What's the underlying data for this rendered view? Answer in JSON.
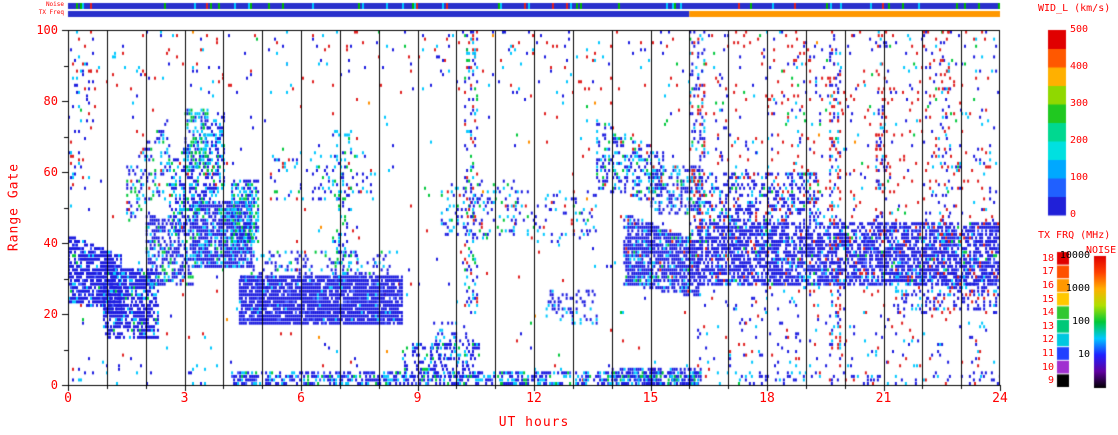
{
  "strips": {
    "noise_label": "Noise",
    "txfreq_label": "TX Freq",
    "noise_strip": {
      "base_color": "#2830cc",
      "speck_colors": {
        "green": "#00b400",
        "red": "#e02020",
        "cyan": "#00c8ff"
      }
    },
    "txfreq_strip": {
      "segments": [
        {
          "t": [
            0,
            16
          ],
          "color": "#2830cc"
        },
        {
          "t": [
            16,
            24
          ],
          "color": "#ff9800"
        }
      ]
    }
  },
  "axes": {
    "xlabel": "UT hours",
    "ylabel": "Range Gate",
    "x_range": [
      0,
      24
    ],
    "x_ticks": [
      0,
      3,
      6,
      9,
      12,
      15,
      18,
      21,
      24
    ],
    "y_range": [
      0,
      100
    ],
    "y_ticks": [
      0,
      20,
      40,
      60,
      80,
      100
    ],
    "text_color": "#ff0000"
  },
  "colorbars": {
    "wid": {
      "title": "WID_L (km/s)",
      "ticks": [
        500,
        400,
        300,
        200,
        100,
        0
      ],
      "range": [
        0,
        500
      ],
      "segment_colors_bottom_to_top": [
        "#2020d8",
        "#2060ff",
        "#00a8ff",
        "#00e0e0",
        "#00d890",
        "#20c820",
        "#90d800",
        "#ffb000",
        "#ff5800",
        "#e00000"
      ]
    },
    "txfrq": {
      "title": "TX FRQ (MHz)",
      "ticks": [
        18,
        17,
        16,
        15,
        14,
        13,
        12,
        11,
        10,
        9
      ],
      "block_colors_top_to_bottom": [
        "#e00000",
        "#ff5000",
        "#ff9800",
        "#ffc800",
        "#30c830",
        "#00c878",
        "#00c8e0",
        "#2040ff",
        "#a030d0",
        "#000000"
      ]
    },
    "noise": {
      "title": "NOISE",
      "ticks": [
        10000,
        1000,
        100,
        10
      ],
      "scale": "log",
      "ramp_bottom_to_top": [
        "#000000",
        "#6000a0",
        "#2020ff",
        "#00c8ff",
        "#00c838",
        "#b0e000",
        "#ffb000",
        "#ff4000",
        "#e00000"
      ]
    }
  },
  "chart_data": {
    "type": "scatter",
    "xlabel": "UT hours",
    "ylabel": "Range Gate",
    "xlim": [
      0,
      24
    ],
    "ylim": [
      0,
      100
    ],
    "value_scale": {
      "name": "WID_L (km/s)",
      "range": [
        0,
        500
      ]
    },
    "gridlines": {
      "vertical_every_hour": true,
      "color": "#000000"
    },
    "seed": 1234,
    "palette": {
      "blue": "#1c1ce0",
      "blue2": "#3c55ff",
      "cyan": "#00c8ff",
      "green": "#00c83c",
      "red": "#e02020",
      "orange": "#ff9000"
    },
    "regions": [
      {
        "t": [
          0,
          24
        ],
        "g": [
          0,
          100
        ],
        "d": 0.01,
        "w": {
          "blue": 0.35,
          "red": 0.3,
          "cyan": 0.2,
          "green": 0.1,
          "orange": 0.05
        }
      },
      {
        "t": [
          0,
          16
        ],
        "g": [
          82,
          100
        ],
        "d": 0.03,
        "w": {
          "blue": 0.4,
          "red": 0.35,
          "cyan": 0.25
        }
      },
      {
        "t": [
          0,
          1.35
        ],
        "g": [
          23,
          42
        ],
        "g2": [
          20,
          36
        ],
        "d": 0.8,
        "w": {
          "blue": 0.8,
          "blue2": 0.1,
          "cyan": 0.08,
          "green": 0.02
        }
      },
      {
        "t": [
          0,
          0.7
        ],
        "g": [
          55,
          92
        ],
        "d": 0.1,
        "w": {
          "blue": 0.5,
          "cyan": 0.3,
          "red": 0.2
        }
      },
      {
        "t": [
          0.9,
          2.3
        ],
        "g": [
          13,
          33
        ],
        "d": 0.65,
        "w": {
          "blue": 0.85,
          "cyan": 0.1,
          "green": 0.05
        }
      },
      {
        "t": [
          1.5,
          2.6
        ],
        "g": [
          45,
          62
        ],
        "g2": [
          55,
          75
        ],
        "d": 0.3,
        "w": {
          "blue": 0.5,
          "cyan": 0.3,
          "green": 0.15,
          "red": 0.05
        }
      },
      {
        "t": [
          2.0,
          3.2
        ],
        "g": [
          28,
          48
        ],
        "d": 0.5,
        "w": {
          "blue": 0.7,
          "cyan": 0.2,
          "green": 0.1
        }
      },
      {
        "t": [
          2.6,
          4.0
        ],
        "g": [
          40,
          62
        ],
        "g2": [
          55,
          78
        ],
        "d": 0.45,
        "w": {
          "blue": 0.55,
          "cyan": 0.3,
          "green": 0.12,
          "red": 0.03
        }
      },
      {
        "t": [
          3.0,
          3.6
        ],
        "g": [
          60,
          78
        ],
        "d": 0.5,
        "w": {
          "cyan": 0.4,
          "green": 0.35,
          "blue": 0.25
        }
      },
      {
        "t": [
          3.2,
          4.7
        ],
        "g": [
          33,
          52
        ],
        "d": 0.8,
        "w": {
          "blue": 0.75,
          "cyan": 0.2,
          "green": 0.05
        }
      },
      {
        "t": [
          4.2,
          4.9
        ],
        "g": [
          40,
          58
        ],
        "d": 0.6,
        "w": {
          "blue": 0.5,
          "cyan": 0.35,
          "green": 0.15
        }
      },
      {
        "t": [
          4.4,
          8.6
        ],
        "g": [
          17,
          31
        ],
        "d": 0.88,
        "w": {
          "blue": 0.9,
          "blue2": 0.06,
          "cyan": 0.04
        }
      },
      {
        "t": [
          4.6,
          8.3
        ],
        "g": [
          31,
          38
        ],
        "d": 0.25,
        "w": {
          "blue": 0.6,
          "cyan": 0.3,
          "green": 0.1
        }
      },
      {
        "t": [
          4.2,
          16.3
        ],
        "g": [
          0,
          4
        ],
        "d": 0.55,
        "w": {
          "blue": 0.6,
          "cyan": 0.25,
          "green": 0.1,
          "blue2": 0.05
        }
      },
      {
        "t": [
          5.2,
          7.9
        ],
        "g": [
          52,
          66
        ],
        "d": 0.12,
        "w": {
          "blue": 0.5,
          "cyan": 0.3,
          "red": 0.1,
          "green": 0.1
        }
      },
      {
        "t": [
          6.8,
          7.3
        ],
        "g": [
          30,
          72
        ],
        "d": 0.16,
        "w": {
          "cyan": 0.5,
          "blue": 0.3,
          "green": 0.2
        }
      },
      {
        "t": [
          8.6,
          10.6
        ],
        "g": [
          2,
          12
        ],
        "d": 0.35,
        "w": {
          "blue": 0.7,
          "cyan": 0.2,
          "green": 0.1
        }
      },
      {
        "t": [
          9.3,
          10.3
        ],
        "g": [
          5,
          18
        ],
        "d": 0.18,
        "w": {
          "blue": 0.7,
          "cyan": 0.3
        }
      },
      {
        "t": [
          10.2,
          10.55
        ],
        "g": [
          20,
          100
        ],
        "d": 0.25,
        "w": {
          "blue": 0.45,
          "cyan": 0.2,
          "red": 0.2,
          "green": 0.15
        }
      },
      {
        "t": [
          9.6,
          11.6
        ],
        "g": [
          42,
          58
        ],
        "d": 0.2,
        "w": {
          "blue": 0.5,
          "cyan": 0.25,
          "green": 0.15,
          "red": 0.1
        }
      },
      {
        "t": [
          11.3,
          13.6
        ],
        "g": [
          40,
          55
        ],
        "d": 0.13,
        "w": {
          "blue": 0.55,
          "cyan": 0.25,
          "red": 0.1,
          "green": 0.1
        }
      },
      {
        "t": [
          12.3,
          13.6
        ],
        "g": [
          17,
          27
        ],
        "d": 0.3,
        "w": {
          "blue": 0.8,
          "cyan": 0.2
        }
      },
      {
        "t": [
          13.6,
          15.3
        ],
        "g": [
          55,
          75
        ],
        "g2": [
          50,
          65
        ],
        "d": 0.35,
        "w": {
          "blue": 0.6,
          "cyan": 0.25,
          "green": 0.1,
          "red": 0.05
        }
      },
      {
        "t": [
          14.3,
          16.25
        ],
        "g": [
          28,
          48
        ],
        "g2": [
          24,
          40
        ],
        "d": 0.8,
        "w": {
          "blue": 0.82,
          "cyan": 0.12,
          "green": 0.03,
          "red": 0.03
        }
      },
      {
        "t": [
          15.0,
          16.25
        ],
        "g": [
          48,
          62
        ],
        "d": 0.4,
        "w": {
          "blue": 0.65,
          "cyan": 0.25,
          "red": 0.05,
          "green": 0.05
        }
      },
      {
        "t": [
          14.0,
          16.3
        ],
        "g": [
          0,
          5
        ],
        "d": 0.6,
        "w": {
          "blue": 0.65,
          "cyan": 0.25,
          "green": 0.1
        }
      },
      {
        "t": [
          16.0,
          16.4
        ],
        "g": [
          40,
          100
        ],
        "d": 0.25,
        "w": {
          "blue": 0.5,
          "red": 0.2,
          "cyan": 0.2,
          "green": 0.1
        }
      },
      {
        "t": [
          16.2,
          24
        ],
        "g": [
          28,
          46
        ],
        "d": 0.7,
        "w": {
          "blue": 0.8,
          "blue2": 0.08,
          "cyan": 0.06,
          "red": 0.04,
          "green": 0.02
        }
      },
      {
        "t": [
          16.2,
          19.3
        ],
        "g": [
          46,
          60
        ],
        "d": 0.35,
        "w": {
          "blue": 0.7,
          "cyan": 0.15,
          "red": 0.1,
          "green": 0.05
        }
      },
      {
        "t": [
          16.2,
          24
        ],
        "g": [
          46,
          100
        ],
        "d": 0.07,
        "w": {
          "red": 0.45,
          "blue": 0.35,
          "cyan": 0.12,
          "green": 0.08
        }
      },
      {
        "t": [
          16.2,
          24
        ],
        "g": [
          5,
          28
        ],
        "d": 0.05,
        "w": {
          "blue": 0.5,
          "red": 0.3,
          "cyan": 0.2
        }
      },
      {
        "t": [
          19.6,
          19.9
        ],
        "g": [
          10,
          100
        ],
        "d": 0.2,
        "w": {
          "red": 0.4,
          "blue": 0.4,
          "cyan": 0.2
        }
      },
      {
        "t": [
          20.8,
          21.1
        ],
        "g": [
          40,
          100
        ],
        "d": 0.15,
        "w": {
          "red": 0.35,
          "blue": 0.45,
          "cyan": 0.2
        }
      },
      {
        "t": [
          22.4,
          22.7
        ],
        "g": [
          40,
          100
        ],
        "d": 0.15,
        "w": {
          "red": 0.4,
          "blue": 0.4,
          "cyan": 0.2
        }
      },
      {
        "t": [
          21.3,
          24
        ],
        "g": [
          20,
          32
        ],
        "d": 0.25,
        "w": {
          "blue": 0.7,
          "cyan": 0.2,
          "red": 0.1
        }
      },
      {
        "t": [
          16.4,
          24
        ],
        "g": [
          0,
          4
        ],
        "d": 0.15,
        "w": {
          "blue": 0.6,
          "cyan": 0.3,
          "red": 0.1
        }
      },
      {
        "t": [
          0,
          4.2
        ],
        "g": [
          0,
          8
        ],
        "d": 0.05,
        "w": {
          "blue": 0.6,
          "cyan": 0.4
        }
      }
    ]
  }
}
